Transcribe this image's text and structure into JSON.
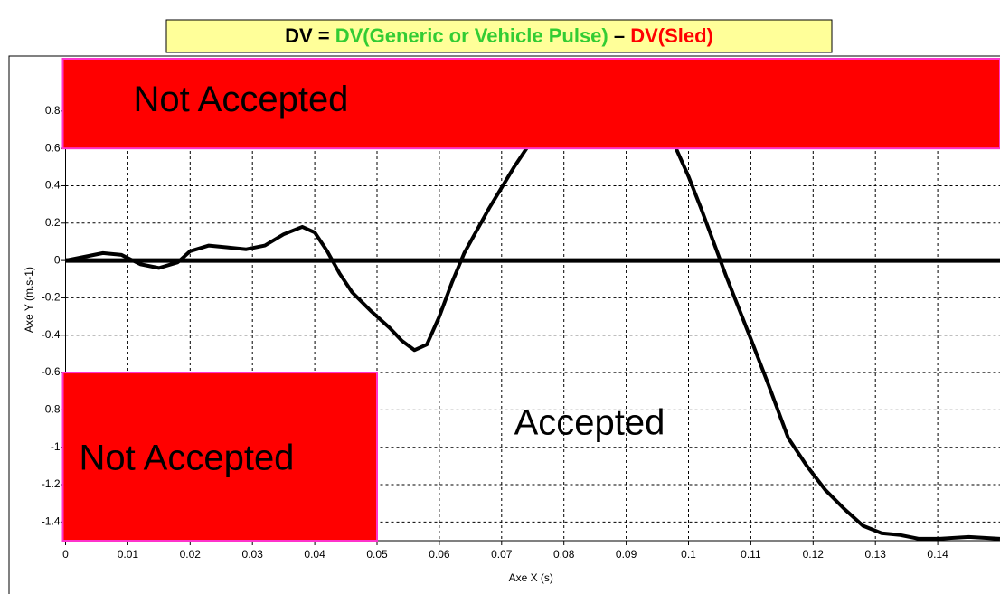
{
  "chart_data": {
    "type": "line",
    "title_parts": [
      {
        "text": "DV = ",
        "color": "#000000"
      },
      {
        "text": "DV(Generic or Vehicle Pulse)",
        "color": "#33cc33"
      },
      {
        "text": " – ",
        "color": "#000000"
      },
      {
        "text": "DV(Sled)",
        "color": "#ff0000"
      }
    ],
    "title_background": "#ffff99",
    "x_label": "Axe X (s)",
    "y_label": "Axe Y (m.s-1)",
    "xlim": [
      0,
      0.15
    ],
    "ylim": [
      -1.5,
      1.08
    ],
    "xticks": [
      0,
      0.01,
      0.02,
      0.03,
      0.04,
      0.05,
      0.06,
      0.07,
      0.08,
      0.09,
      0.1,
      0.11,
      0.12,
      0.13,
      0.14
    ],
    "yticks": [
      -1.4,
      -1.2,
      -1,
      -0.8,
      -0.6,
      -0.4,
      -0.2,
      0,
      0.2,
      0.4,
      0.6,
      0.8
    ],
    "grid": true,
    "reference_line": 0,
    "regions": [
      {
        "label": "Not Accepted",
        "x": [
          0,
          0.15
        ],
        "y": [
          0.6,
          1.08
        ],
        "color": "#ff0000",
        "border": "#ff33cc"
      },
      {
        "label": "Not Accepted",
        "x": [
          0,
          0.05
        ],
        "y": [
          -1.5,
          -0.6
        ],
        "color": "#ff0000",
        "border": "#ff33cc"
      }
    ],
    "annotation": "Accepted",
    "series": [
      {
        "name": "DV",
        "color": "#000000",
        "x": [
          0,
          0.003,
          0.006,
          0.009,
          0.012,
          0.015,
          0.018,
          0.02,
          0.023,
          0.026,
          0.029,
          0.032,
          0.035,
          0.038,
          0.04,
          0.042,
          0.044,
          0.046,
          0.049,
          0.052,
          0.054,
          0.056,
          0.058,
          0.06,
          0.062,
          0.064,
          0.066,
          0.068,
          0.07,
          0.072,
          0.074,
          0.078,
          0.086,
          0.094,
          0.098,
          0.1,
          0.102,
          0.104,
          0.106,
          0.108,
          0.11,
          0.113,
          0.116,
          0.119,
          0.122,
          0.125,
          0.128,
          0.131,
          0.134,
          0.137,
          0.14,
          0.145,
          0.15
        ],
        "values": [
          0,
          0.02,
          0.04,
          0.03,
          -0.02,
          -0.04,
          -0.01,
          0.05,
          0.08,
          0.07,
          0.06,
          0.08,
          0.14,
          0.18,
          0.15,
          0.05,
          -0.07,
          -0.17,
          -0.27,
          -0.36,
          -0.43,
          -0.48,
          -0.45,
          -0.3,
          -0.12,
          0.04,
          0.16,
          0.28,
          0.39,
          0.5,
          0.6,
          0.8,
          1,
          0.85,
          0.6,
          0.45,
          0.28,
          0.1,
          -0.08,
          -0.25,
          -0.42,
          -0.68,
          -0.95,
          -1.1,
          -1.23,
          -1.33,
          -1.42,
          -1.46,
          -1.47,
          -1.49,
          -1.49,
          -1.48,
          -1.49
        ]
      }
    ]
  }
}
